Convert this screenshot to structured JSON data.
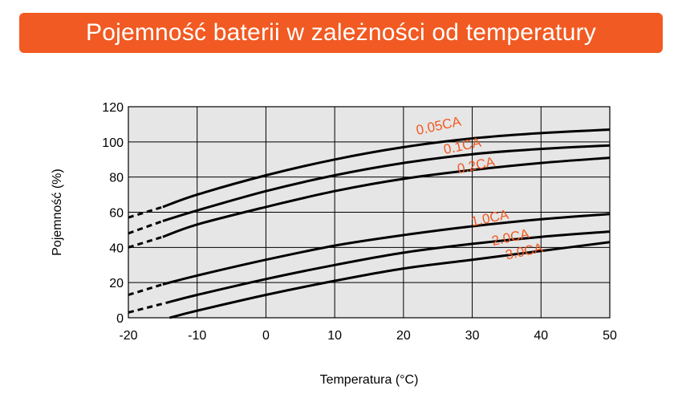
{
  "header": {
    "title": "Pojemność baterii w zależności od temperatury"
  },
  "colors": {
    "accent": "#f15a22",
    "plot_bg": "#e6e6e6",
    "grid": "#000000",
    "curve": "#000000"
  },
  "chart_data": {
    "type": "line",
    "title": "Pojemność baterii w zależności od temperatury",
    "xlabel": "Temperatura (°C)",
    "ylabel": "Pojemność (%)",
    "xlim": [
      -20,
      50
    ],
    "ylim": [
      0,
      120
    ],
    "xticks": [
      "-20",
      "-10",
      "0",
      "10",
      "20",
      "30",
      "40",
      "50"
    ],
    "yticks": [
      "0",
      "20",
      "40",
      "60",
      "80",
      "100",
      "120"
    ],
    "grid": true,
    "series": [
      {
        "name": "0.05CA",
        "dashed_until": -15,
        "points": [
          [
            -20,
            57
          ],
          [
            -15,
            63
          ],
          [
            -10,
            70
          ],
          [
            0,
            81
          ],
          [
            10,
            90
          ],
          [
            20,
            97
          ],
          [
            30,
            102
          ],
          [
            40,
            105
          ],
          [
            50,
            107
          ]
        ]
      },
      {
        "name": "0.1CA",
        "dashed_until": -15,
        "points": [
          [
            -20,
            48
          ],
          [
            -15,
            55
          ],
          [
            -10,
            61
          ],
          [
            0,
            72
          ],
          [
            10,
            81
          ],
          [
            20,
            88
          ],
          [
            30,
            93
          ],
          [
            40,
            96
          ],
          [
            50,
            98
          ]
        ]
      },
      {
        "name": "0.2CA",
        "dashed_until": -15,
        "points": [
          [
            -20,
            40
          ],
          [
            -15,
            46
          ],
          [
            -10,
            53
          ],
          [
            0,
            63
          ],
          [
            10,
            72
          ],
          [
            20,
            79
          ],
          [
            30,
            84
          ],
          [
            40,
            88
          ],
          [
            50,
            91
          ]
        ]
      },
      {
        "name": "1.0CA",
        "dashed_until": -15,
        "points": [
          [
            -20,
            13
          ],
          [
            -15,
            19
          ],
          [
            -10,
            24
          ],
          [
            0,
            33
          ],
          [
            10,
            41
          ],
          [
            20,
            47
          ],
          [
            30,
            52
          ],
          [
            40,
            56
          ],
          [
            50,
            59
          ]
        ]
      },
      {
        "name": "2.0CA",
        "dashed_until": -14,
        "points": [
          [
            -20,
            3
          ],
          [
            -14,
            9
          ],
          [
            -10,
            13
          ],
          [
            0,
            22
          ],
          [
            10,
            30
          ],
          [
            20,
            37
          ],
          [
            30,
            42
          ],
          [
            40,
            46
          ],
          [
            50,
            49
          ]
        ]
      },
      {
        "name": "3.0CA",
        "dashed_until": null,
        "points": [
          [
            -14,
            0
          ],
          [
            -10,
            4
          ],
          [
            0,
            13
          ],
          [
            10,
            21
          ],
          [
            20,
            28
          ],
          [
            30,
            33
          ],
          [
            40,
            38
          ],
          [
            50,
            43
          ]
        ]
      }
    ],
    "annotations": [
      {
        "text": "0.05CA",
        "x": 22,
        "y": 104,
        "angle": -12
      },
      {
        "text": "0.1CA",
        "x": 26,
        "y": 93,
        "angle": -12
      },
      {
        "text": "0.2CA",
        "x": 28,
        "y": 82,
        "angle": -12
      },
      {
        "text": "1.0CA",
        "x": 30,
        "y": 52,
        "angle": -12
      },
      {
        "text": "2.0CA",
        "x": 33,
        "y": 41,
        "angle": -12
      },
      {
        "text": "3.0CA",
        "x": 35,
        "y": 33,
        "angle": -12
      }
    ]
  }
}
